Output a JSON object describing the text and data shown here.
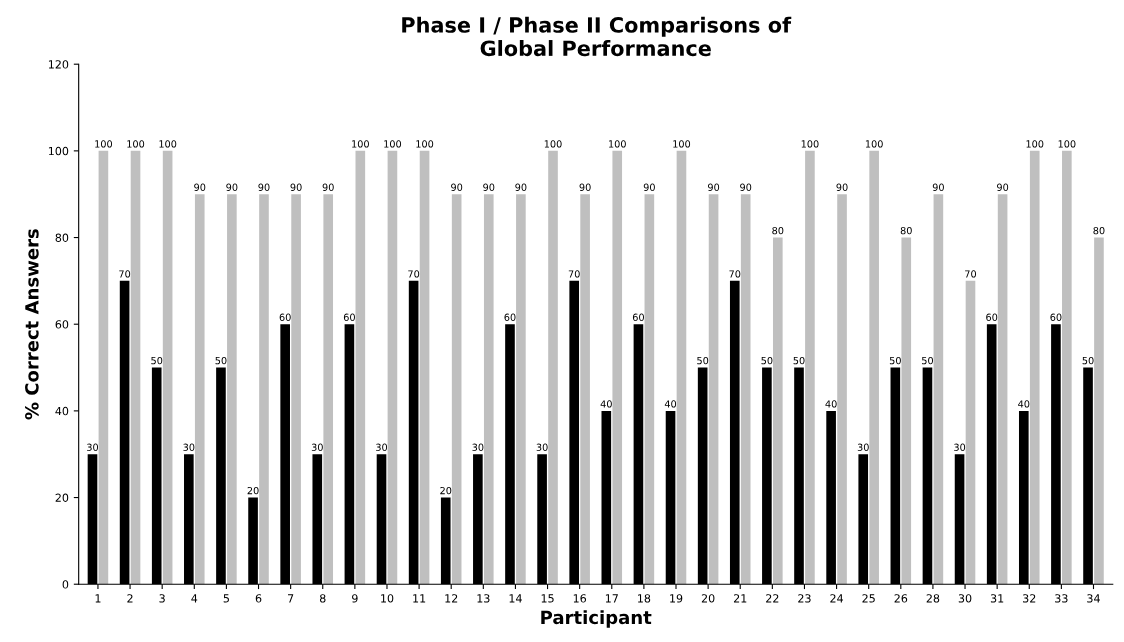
{
  "chart_data": {
    "type": "bar",
    "title": "Phase I / Phase II Comparisons of\nGlobal Performance",
    "xlabel": "Participant",
    "ylabel": "% Correct Answers",
    "categories": [
      "1",
      "2",
      "3",
      "4",
      "5",
      "6",
      "7",
      "8",
      "9",
      "10",
      "11",
      "12",
      "13",
      "14",
      "15",
      "16",
      "17",
      "18",
      "19",
      "20",
      "21",
      "22",
      "23",
      "24",
      "25",
      "26",
      "28",
      "30",
      "31",
      "32",
      "33",
      "34"
    ],
    "series": [
      {
        "color": "#000000",
        "values": [
          30,
          70,
          50,
          30,
          50,
          20,
          60,
          30,
          60,
          30,
          70,
          20,
          30,
          60,
          30,
          70,
          40,
          60,
          40,
          50,
          70,
          50,
          50,
          40,
          30,
          50,
          50,
          30,
          60,
          40,
          60,
          50
        ]
      },
      {
        "color": "#bfbfbf",
        "values": [
          100,
          100,
          100,
          90,
          90,
          90,
          90,
          90,
          100,
          100,
          100,
          90,
          90,
          90,
          100,
          90,
          100,
          90,
          100,
          90,
          90,
          80,
          100,
          90,
          100,
          80,
          90,
          70,
          90,
          100,
          100,
          80
        ]
      }
    ],
    "ylim": [
      0,
      120
    ],
    "yticks": [
      0,
      20,
      40,
      60,
      80,
      100,
      120
    ],
    "data_labels": true,
    "grid": false,
    "legend": false
  }
}
